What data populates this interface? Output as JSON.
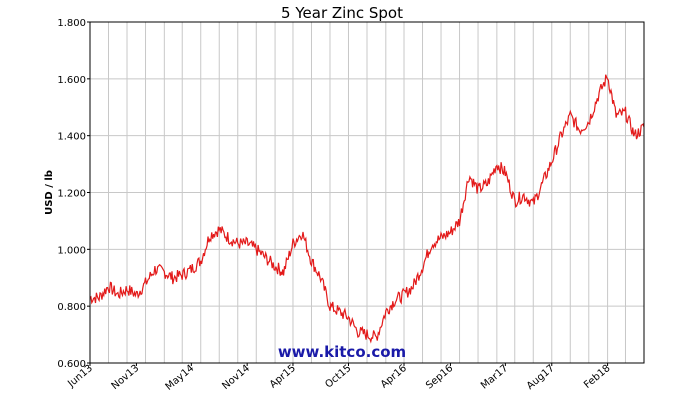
{
  "chart_data": {
    "type": "line",
    "title": "5 Year Zinc Spot",
    "ylabel": "USD / lb",
    "xlabel": "",
    "watermark": "www.kitco.com",
    "ylim": [
      0.6,
      1.8
    ],
    "yticks": [
      0.6,
      0.8,
      1.0,
      1.2,
      1.4,
      1.6,
      1.8
    ],
    "ytick_labels": [
      "0.600",
      "0.800",
      "1.000",
      "1.200",
      "1.400",
      "1.600",
      "1.800"
    ],
    "xlim": [
      "2013-06-01",
      "2018-06-01"
    ],
    "xtick_labels": [
      "Jun13",
      "Nov13",
      "May14",
      "Nov14",
      "Apr15",
      "Oct15",
      "Apr16",
      "Sep16",
      "Mar17",
      "Aug17",
      "Feb18"
    ],
    "xtick_dates": [
      "2013-06-01",
      "2013-11-01",
      "2014-05-01",
      "2014-11-01",
      "2015-04-01",
      "2015-10-01",
      "2016-04-01",
      "2016-09-01",
      "2017-03-01",
      "2017-08-01",
      "2018-02-01"
    ],
    "grid": true,
    "legend": "none",
    "series": [
      {
        "color": "#e31a1a",
        "x": [
          "2013-06-01",
          "2013-07-01",
          "2013-08-01",
          "2013-09-01",
          "2013-10-01",
          "2013-11-01",
          "2013-12-01",
          "2014-01-01",
          "2014-02-01",
          "2014-03-01",
          "2014-04-01",
          "2014-05-01",
          "2014-06-01",
          "2014-07-01",
          "2014-08-01",
          "2014-09-01",
          "2014-10-01",
          "2014-11-01",
          "2014-12-01",
          "2015-01-01",
          "2015-02-01",
          "2015-03-01",
          "2015-04-01",
          "2015-05-01",
          "2015-06-01",
          "2015-07-01",
          "2015-08-01",
          "2015-09-01",
          "2015-10-01",
          "2015-11-01",
          "2015-12-01",
          "2016-01-01",
          "2016-02-01",
          "2016-03-01",
          "2016-04-01",
          "2016-05-01",
          "2016-06-01",
          "2016-07-01",
          "2016-08-01",
          "2016-09-01",
          "2016-10-01",
          "2016-11-01",
          "2016-12-01",
          "2017-01-01",
          "2017-02-01",
          "2017-03-01",
          "2017-04-01",
          "2017-05-01",
          "2017-06-01",
          "2017-07-01",
          "2017-08-01",
          "2017-09-01",
          "2017-10-01",
          "2017-11-01",
          "2017-12-01",
          "2018-01-01",
          "2018-02-01",
          "2018-03-01",
          "2018-04-01",
          "2018-05-01",
          "2018-06-01"
        ],
        "y": [
          0.83,
          0.83,
          0.87,
          0.84,
          0.86,
          0.84,
          0.88,
          0.93,
          0.92,
          0.9,
          0.91,
          0.93,
          0.96,
          1.05,
          1.07,
          1.04,
          1.02,
          1.02,
          1.0,
          0.97,
          0.94,
          0.92,
          1.02,
          1.06,
          0.96,
          0.9,
          0.8,
          0.78,
          0.76,
          0.71,
          0.7,
          0.69,
          0.78,
          0.82,
          0.84,
          0.87,
          0.94,
          1.02,
          1.04,
          1.06,
          1.1,
          1.26,
          1.21,
          1.23,
          1.3,
          1.27,
          1.17,
          1.19,
          1.16,
          1.23,
          1.31,
          1.4,
          1.47,
          1.42,
          1.45,
          1.54,
          1.61,
          1.47,
          1.48,
          1.4,
          1.43
        ]
      }
    ]
  }
}
